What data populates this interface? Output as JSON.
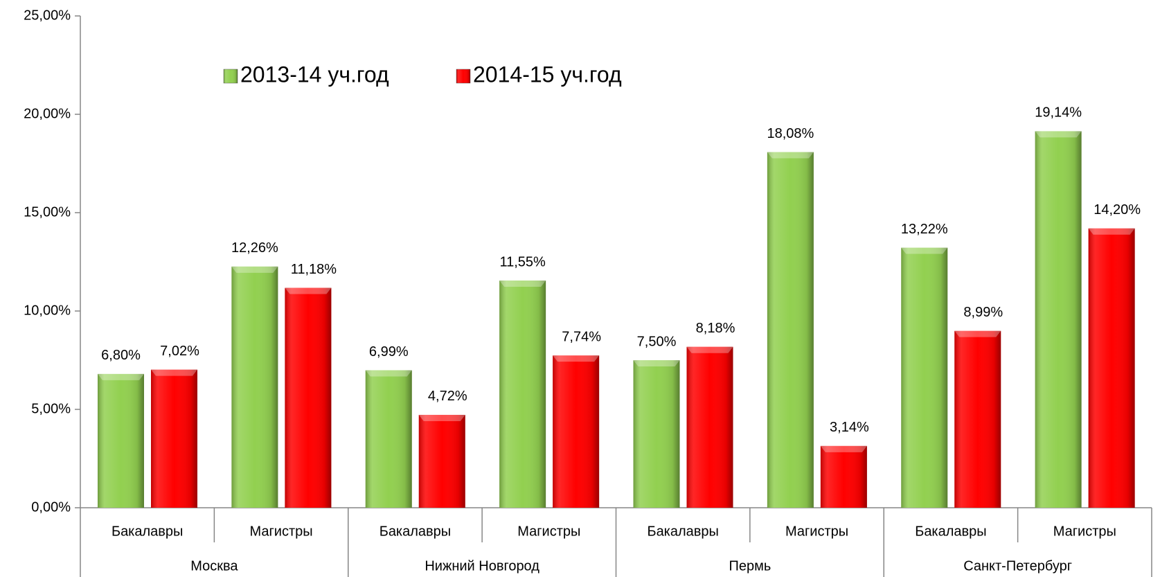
{
  "chart_data": {
    "type": "bar",
    "categories": [
      "Бакалавры",
      "Магистры",
      "Бакалавры",
      "Магистры",
      "Бакалавры",
      "Магистры",
      "Бакалавры",
      "Магистры"
    ],
    "groups": [
      "Москва",
      "Нижний Новгород",
      "Пермь",
      "Санкт-Петербург"
    ],
    "series": [
      {
        "name": "2013-14 уч.год",
        "color": "#92d050",
        "values": [
          6.8,
          12.26,
          6.99,
          11.55,
          7.5,
          18.08,
          13.22,
          19.14
        ],
        "value_labels": [
          "6,80%",
          "12,26%",
          "6,99%",
          "11,55%",
          "7,50%",
          "18,08%",
          "13,22%",
          "19,14%"
        ]
      },
      {
        "name": "2014-15 уч.год",
        "color": "#ff0000",
        "values": [
          7.02,
          11.18,
          4.72,
          7.74,
          8.18,
          3.14,
          8.99,
          14.2
        ],
        "value_labels": [
          "7,02%",
          "11,18%",
          "4,72%",
          "7,74%",
          "8,18%",
          "3,14%",
          "8,99%",
          "14,20%"
        ]
      }
    ],
    "ylim": [
      0,
      25
    ],
    "yticks": [
      {
        "value": 0,
        "label": "0,00%"
      },
      {
        "value": 5,
        "label": "5,00%"
      },
      {
        "value": 10,
        "label": "10,00%"
      },
      {
        "value": 15,
        "label": "15,00%"
      },
      {
        "value": 20,
        "label": "20,00%"
      },
      {
        "value": 25,
        "label": "25,00%"
      }
    ],
    "grid": false,
    "legend": "top"
  }
}
